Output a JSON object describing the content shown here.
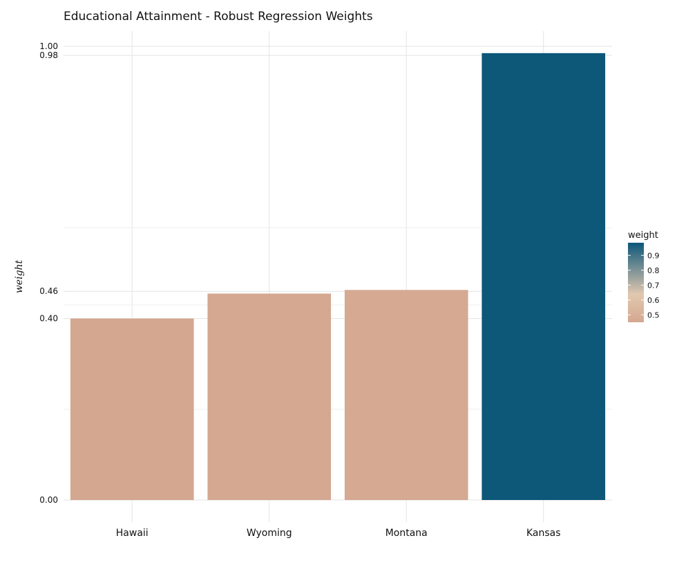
{
  "chart_data": {
    "type": "bar",
    "title": "Educational Attainment - Robust Regression Weights",
    "xlabel": "",
    "ylabel": "weight",
    "categories": [
      "Hawaii",
      "Wyoming",
      "Montana",
      "Kansas"
    ],
    "values": [
      0.4,
      0.455,
      0.463,
      0.985
    ],
    "ylim": [
      0,
      1.0
    ],
    "y_ticks": [
      {
        "value": 0.0,
        "label": "0.00"
      },
      {
        "value": 0.4,
        "label": "0.40"
      },
      {
        "value": 0.46,
        "label": "0.46"
      },
      {
        "value": 0.98,
        "label": "0.98"
      },
      {
        "value": 1.0,
        "label": "1.00"
      }
    ],
    "minor_grid": [
      0.2,
      0.6
    ],
    "extra_grid": [
      0.43
    ],
    "grid": true,
    "legend": {
      "title": "weight",
      "position": "right",
      "ticks": [
        "0.5",
        "0.6",
        "0.7",
        "0.8",
        "0.9"
      ],
      "tick_values": [
        0.5,
        0.6,
        0.7,
        0.8,
        0.9
      ],
      "range": [
        0.45,
        0.985
      ]
    },
    "colors": {
      "low": "#d4a790",
      "mid": "#e2c8b0",
      "high": "#0d5779",
      "grid": "#e3e3e3",
      "text": "#111111"
    }
  }
}
